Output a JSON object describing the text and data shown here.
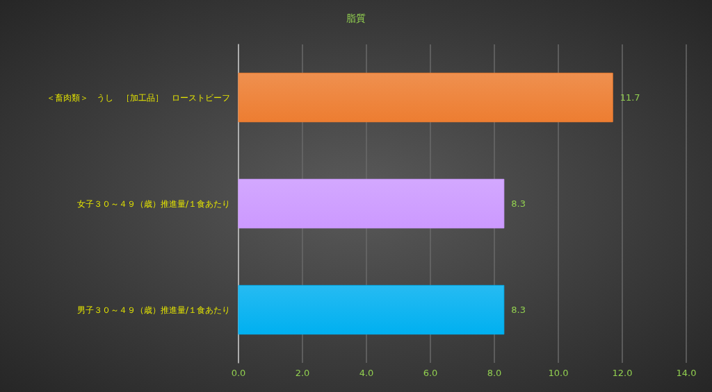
{
  "chart_data": {
    "type": "bar",
    "orientation": "horizontal",
    "title": "脂質",
    "categories": [
      "＜畜肉類＞　うし　［加工品］　ローストビーフ",
      "女子３０～４９（歳）推進量/１食あたり",
      "男子３０～４９（歳）推進量/１食あたり"
    ],
    "values": [
      11.7,
      8.3,
      8.3
    ],
    "colors": [
      "#ed7d31",
      "#cc99ff",
      "#00b0f0"
    ],
    "xlim": [
      0,
      14
    ],
    "xticks": [
      {
        "value": 0,
        "label": "0.0"
      },
      {
        "value": 2,
        "label": "2.0"
      },
      {
        "value": 4,
        "label": "4.0"
      },
      {
        "value": 6,
        "label": "6.0"
      },
      {
        "value": 8,
        "label": "8.0"
      },
      {
        "value": 10,
        "label": "10.0"
      },
      {
        "value": 12,
        "label": "12.0"
      },
      {
        "value": 14,
        "label": "14.0"
      }
    ],
    "grid": "x",
    "data_labels": true
  }
}
